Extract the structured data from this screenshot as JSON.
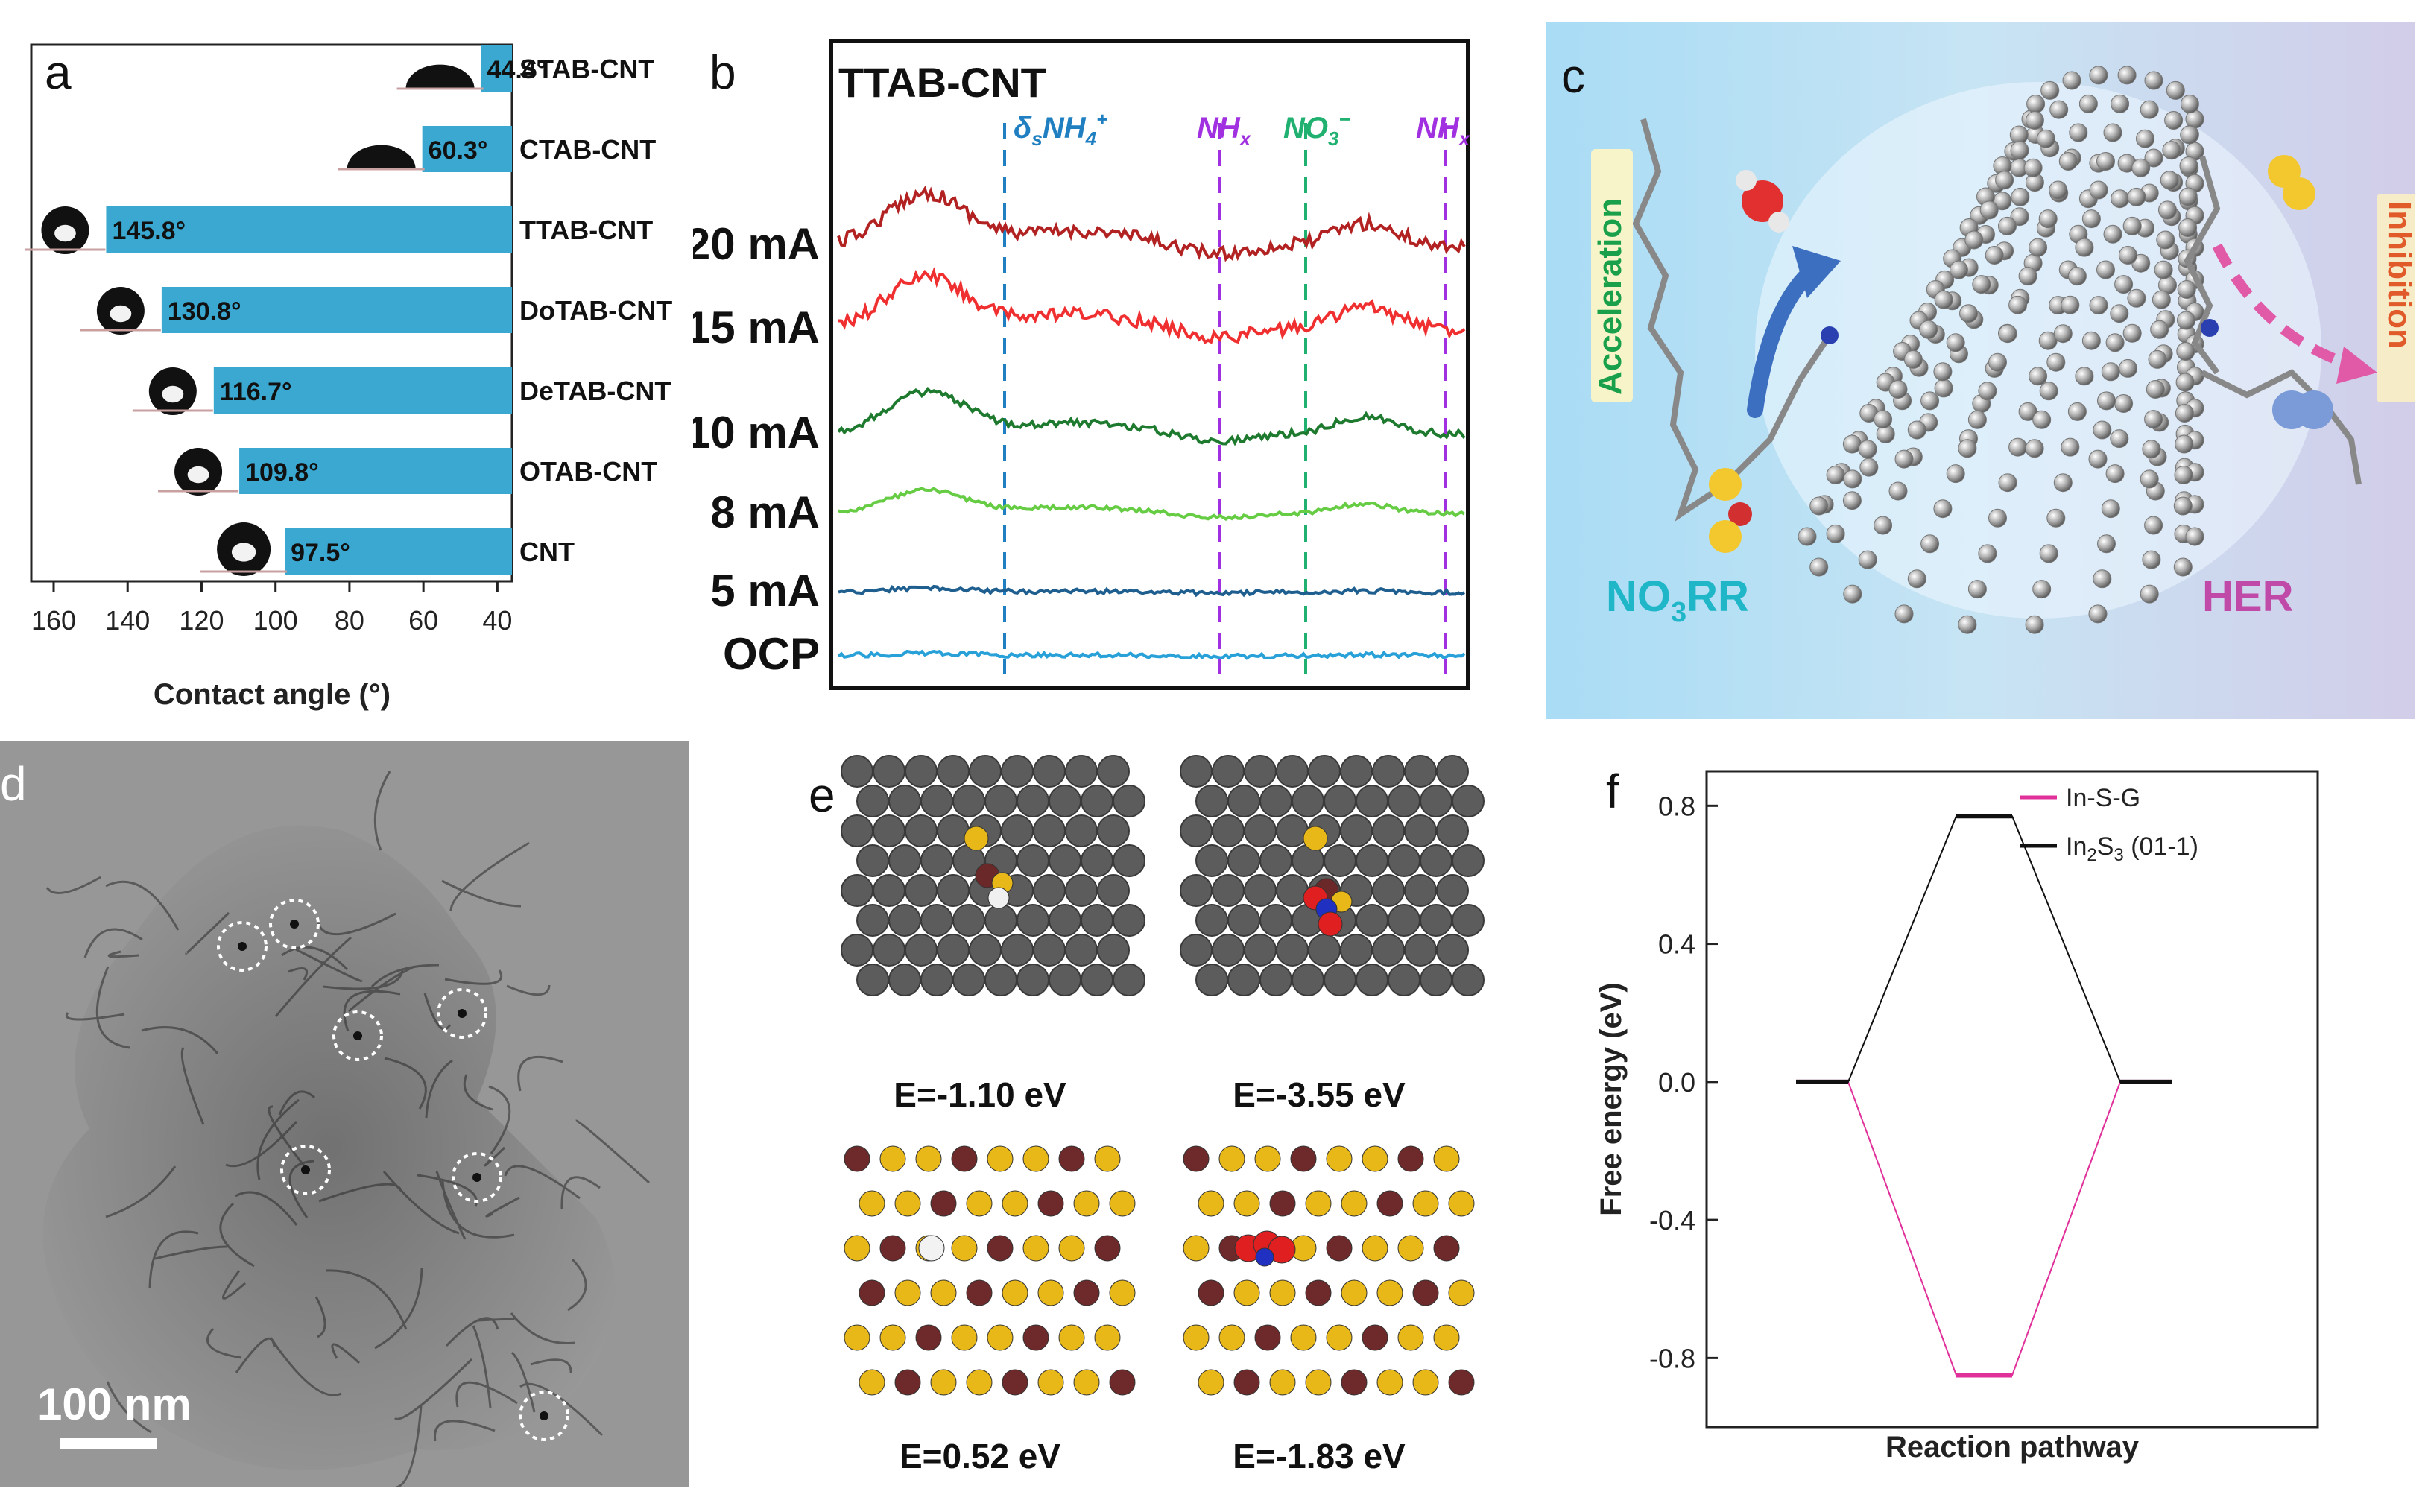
{
  "panel_labels": {
    "a": "a",
    "b": "b",
    "c": "c",
    "d": "d",
    "e": "e",
    "f": "f"
  },
  "panel_a": {
    "chart_data": {
      "type": "bar",
      "orientation": "horizontal",
      "categories": [
        "STAB-CNT",
        "CTAB-CNT",
        "TTAB-CNT",
        "DoTAB-CNT",
        "DeTAB-CNT",
        "OTAB-CNT",
        "CNT"
      ],
      "values": [
        44.4,
        60.3,
        145.8,
        130.8,
        116.7,
        109.8,
        97.5
      ],
      "value_labels": [
        "44.4°",
        "60.3°",
        "145.8°",
        "130.8°",
        "116.7°",
        "109.8°",
        "97.5°"
      ],
      "xlabel": "Contact angle (°)",
      "xlim": [
        160,
        30
      ],
      "xticks": [
        160,
        140,
        120,
        100,
        80,
        60,
        40
      ],
      "bar_color": "#3aa8d0"
    }
  },
  "panel_b": {
    "chart_data": {
      "type": "line",
      "title": "TTAB-CNT",
      "series": [
        {
          "name": "20 mA",
          "color": "#b22222"
        },
        {
          "name": "15 mA",
          "color": "#f03030"
        },
        {
          "name": "10 mA",
          "color": "#1e7a2e"
        },
        {
          "name": "8 mA",
          "color": "#66cc44"
        },
        {
          "name": "5 mA",
          "color": "#1f5f8f"
        },
        {
          "name": "OCP",
          "color": "#28a0d8"
        }
      ],
      "markers": [
        {
          "label": "δsNH4+",
          "main": "δ",
          "sub": "s",
          "base": "NH",
          "sub2": "4",
          "sup": "+",
          "color": "#1f7fc0"
        },
        {
          "label": "NHx",
          "base": "NH",
          "sub": "x",
          "color": "#a030e0"
        },
        {
          "label": "NO3-",
          "base": "NO",
          "sub": "3",
          "sup": "−",
          "color": "#20b070"
        },
        {
          "label": "NHx",
          "base": "NH",
          "sub": "x",
          "color": "#a030e0"
        }
      ]
    }
  },
  "panel_c": {
    "left_label": "Acceleration",
    "right_label": "Inhibition",
    "nrr_label": {
      "base": "NO",
      "sub": "3",
      "tail": "RR"
    },
    "her_label": "HER"
  },
  "panel_d": {
    "scale_bar": "100 nm"
  },
  "panel_e": {
    "energies": [
      "E=-1.10 eV",
      "E=-3.55 eV",
      "E=0.52 eV",
      "E=-1.83 eV"
    ]
  },
  "panel_f": {
    "chart_data": {
      "type": "line",
      "xlabel": "Reaction pathway",
      "ylabel": "Free energy (eV)",
      "ylim": [
        -1.0,
        0.9
      ],
      "yticks": [
        "0.8",
        "0.4",
        "0.0",
        "-0.4",
        "-0.8"
      ],
      "ytick_values": [
        0.8,
        0.4,
        0.0,
        -0.4,
        -0.8
      ],
      "series": [
        {
          "name": "In-S-G",
          "values": [
            0.0,
            -0.85,
            0.0
          ],
          "color": "#e0309a"
        },
        {
          "name": "In2S3 (01-1)",
          "values": [
            0.0,
            0.77,
            0.0
          ],
          "color": "#111111"
        }
      ],
      "legend": [
        {
          "label": "In-S-G",
          "color": "#e0309a"
        },
        {
          "label": "In2S3 (01-1)",
          "base": "In",
          "sub": "2",
          "mid": "S",
          "sub2": "3",
          "tail": " (01-1)",
          "color": "#111111"
        }
      ]
    }
  }
}
